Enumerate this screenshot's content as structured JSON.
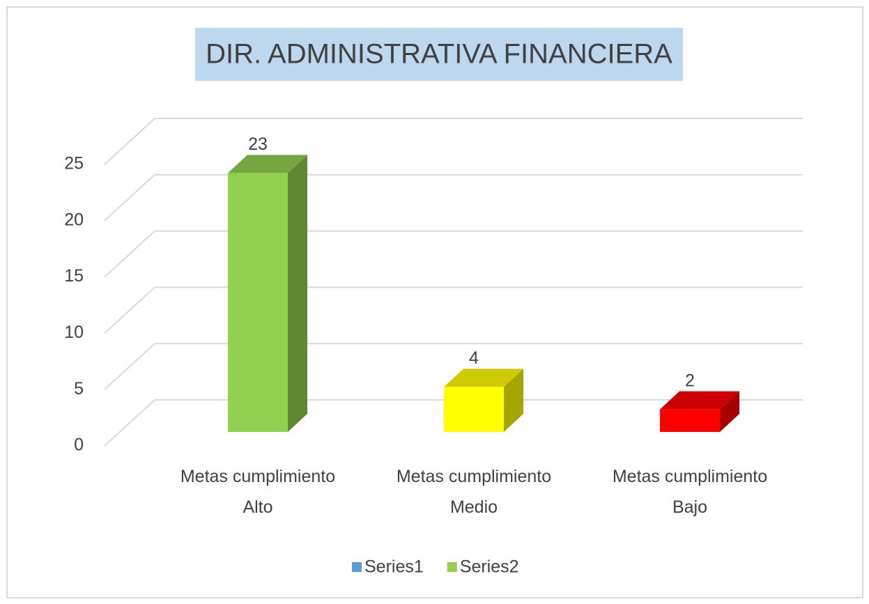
{
  "chart_data": {
    "type": "bar3d",
    "title": "DIR. ADMINISTRATIVA FINANCIERA",
    "categories": [
      "Metas cumplimiento Alto",
      "Metas cumplimiento Medio",
      "Metas cumplimiento Bajo"
    ],
    "series": [
      {
        "name": "Series1",
        "color": "#5b9bd5",
        "values": [
          null,
          null,
          null
        ]
      },
      {
        "name": "Series2",
        "color": "#92d050",
        "colors": [
          "#92d050",
          "#ffff00",
          "#ff0000"
        ],
        "values": [
          23,
          4,
          2
        ]
      }
    ],
    "ylim": [
      0,
      25
    ],
    "yticks": [
      0,
      5,
      10,
      15,
      20,
      25
    ],
    "grid": true,
    "legend": "bottom"
  }
}
